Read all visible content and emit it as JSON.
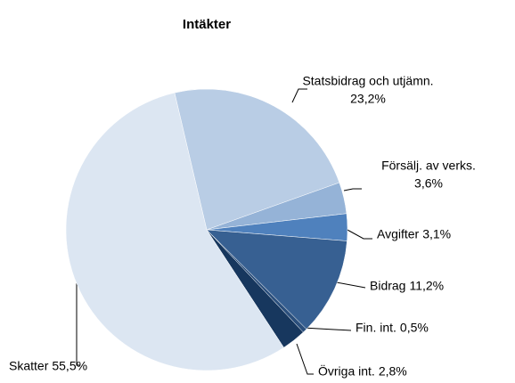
{
  "chart_data": {
    "type": "pie",
    "title": "Intäkter",
    "categories": [
      "Statsbidrag och utjämn.",
      "Försälj. av verks.",
      "Avgifter",
      "Bidrag",
      "Fin. int.",
      "Övriga int.",
      "Skatter"
    ],
    "values": [
      23.2,
      3.6,
      3.1,
      11.2,
      0.5,
      2.8,
      55.5
    ],
    "value_labels": [
      "23,2%",
      "3,6%",
      "3,1%",
      "11,2%",
      "0,5%",
      "2,8%",
      "55,5%"
    ],
    "colors": [
      "#b9cde5",
      "#95b3d7",
      "#4f81bd",
      "#376092",
      "#2b4f7c",
      "#17375e",
      "#dce6f2"
    ]
  }
}
